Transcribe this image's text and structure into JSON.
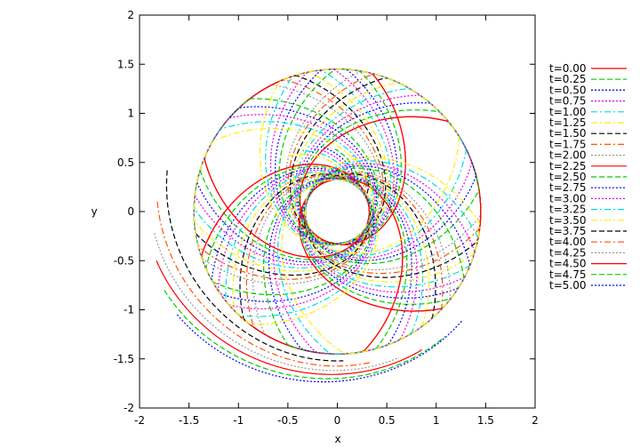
{
  "chart_data": {
    "type": "line",
    "title": "",
    "xlabel": "x",
    "ylabel": "y",
    "xlim": [
      -2,
      2
    ],
    "ylim": [
      -2,
      2
    ],
    "xticks": [
      "-2",
      "-1.5",
      "-1",
      "-0.5",
      "0",
      "0.5",
      "1",
      "1.5",
      "2"
    ],
    "yticks": [
      "-2",
      "-1.5",
      "-1",
      "-0.5",
      "0",
      "0.5",
      "1",
      "1.5",
      "2"
    ],
    "grid": false,
    "legend_position": "right",
    "series": [
      {
        "name": "t=0.00",
        "color": "#ff0000",
        "dash": "solid",
        "type": "rosette",
        "phase": 0.0,
        "tail": 0.0
      },
      {
        "name": "t=0.25",
        "color": "#00cc00",
        "dash": "dashed",
        "type": "rosette",
        "phase": 0.09,
        "tail": 0.0
      },
      {
        "name": "t=0.50",
        "color": "#0000ff",
        "dash": "dotted",
        "type": "rosette",
        "phase": 0.18,
        "tail": 0.0
      },
      {
        "name": "t=0.75",
        "color": "#ee00ee",
        "dash": "dotted",
        "type": "rosette",
        "phase": 0.27,
        "tail": 0.05
      },
      {
        "name": "t=1.00",
        "color": "#00dddd",
        "dash": "dashdot",
        "type": "rosette",
        "phase": 0.36,
        "tail": 0.1
      },
      {
        "name": "t=1.25",
        "color": "#ffee00",
        "dash": "dashdot",
        "type": "rosette",
        "phase": 0.45,
        "tail": 0.15
      },
      {
        "name": "t=1.50",
        "color": "#000000",
        "dash": "dashed",
        "type": "rosette",
        "phase": 0.54,
        "tail": 0.2
      },
      {
        "name": "t=1.75",
        "color": "#ff5500",
        "dash": "dashdot",
        "type": "rosette",
        "phase": 0.63,
        "tail": 0.25
      },
      {
        "name": "t=2.00",
        "color": "#999999",
        "dash": "dotted",
        "type": "rosette",
        "phase": 0.72,
        "tail": 0.3
      },
      {
        "name": "t=2.25",
        "color": "#ff0000",
        "dash": "solid",
        "type": "rosette",
        "phase": 0.0,
        "tail": 0.0
      },
      {
        "name": "t=2.50",
        "color": "#00cc00",
        "dash": "dashed",
        "type": "rosette",
        "phase": 0.9,
        "tail": 0.35
      },
      {
        "name": "t=2.75",
        "color": "#0000ff",
        "dash": "dotted",
        "type": "rosette",
        "phase": 1.0,
        "tail": 0.4
      },
      {
        "name": "t=3.00",
        "color": "#ee00ee",
        "dash": "dotted",
        "type": "rosette",
        "phase": 1.1,
        "tail": 0.4
      },
      {
        "name": "t=3.25",
        "color": "#00dddd",
        "dash": "dashdot",
        "type": "rosette",
        "phase": 1.2,
        "tail": 0.45
      },
      {
        "name": "t=3.50",
        "color": "#ffee00",
        "dash": "dashdot",
        "type": "rosette",
        "phase": 1.3,
        "tail": 0.5
      },
      {
        "name": "t=3.75",
        "color": "#000000",
        "dash": "dashed",
        "type": "arc",
        "phase": 0.0,
        "tail": 0.0,
        "start": [
          -1.72,
          0.42
        ],
        "r": 1.45
      },
      {
        "name": "t=4.00",
        "color": "#ff5500",
        "dash": "dashdot",
        "type": "arc",
        "phase": 0.0,
        "tail": 0.0,
        "start": [
          -1.82,
          0.1
        ],
        "r": 1.5
      },
      {
        "name": "t=4.25",
        "color": "#999999",
        "dash": "dotted",
        "type": "arc",
        "phase": 0.0,
        "tail": 0.0,
        "start": [
          -1.85,
          -0.22
        ],
        "r": 1.55
      },
      {
        "name": "t=4.50",
        "color": "#ff0000",
        "dash": "solid",
        "type": "arc",
        "phase": 0.0,
        "tail": 0.0,
        "start": [
          -1.83,
          -0.5
        ],
        "r": 1.58
      },
      {
        "name": "t=4.75",
        "color": "#00cc00",
        "dash": "dashed",
        "type": "arc",
        "phase": 0.0,
        "tail": 0.0,
        "start": [
          -1.75,
          -0.8
        ],
        "r": 1.62
      },
      {
        "name": "t=5.00",
        "color": "#0000ff",
        "dash": "dotted",
        "type": "arc",
        "phase": 0.0,
        "tail": 0.0,
        "start": [
          -1.62,
          -1.05
        ],
        "r": 1.66
      }
    ]
  }
}
